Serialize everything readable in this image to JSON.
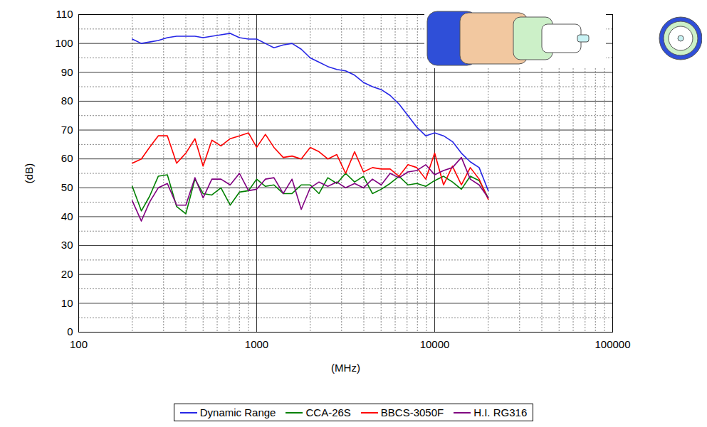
{
  "chart_data": {
    "type": "line",
    "log": "x",
    "grid": true,
    "legend": "bottom",
    "x_label": "(MHz)",
    "y_label": "(dB)",
    "xlim": [
      100,
      100000
    ],
    "xticks": [
      100,
      1000,
      10000,
      100000
    ],
    "ylim": [
      0,
      110
    ],
    "yticks": [
      0,
      10,
      20,
      30,
      40,
      50,
      60,
      70,
      80,
      90,
      100,
      110
    ],
    "x": [
      200,
      225,
      250,
      280,
      315,
      355,
      400,
      450,
      500,
      560,
      630,
      710,
      800,
      900,
      1000,
      1120,
      1250,
      1410,
      1580,
      1780,
      2000,
      2240,
      2510,
      2820,
      3160,
      3550,
      3980,
      4470,
      5010,
      5620,
      6310,
      7080,
      7940,
      8910,
      10000,
      11220,
      12590,
      14130,
      15850,
      17780,
      20000
    ],
    "series": [
      {
        "name": "Dynamic Range",
        "color": "#2626e6",
        "values": [
          101.5,
          100,
          100.5,
          101,
          102,
          102.5,
          102.5,
          102.5,
          102,
          102.5,
          103,
          103.5,
          102,
          101.5,
          101.5,
          100,
          98.5,
          99.5,
          100,
          98,
          95,
          93.5,
          92,
          91,
          90.5,
          89,
          86.5,
          85,
          84,
          82,
          79,
          75,
          71,
          68,
          69,
          68,
          66,
          62,
          59,
          57,
          49
        ]
      },
      {
        "name": "CCA-26S",
        "color": "#008000",
        "values": [
          50.5,
          42,
          47,
          54,
          54.5,
          43.5,
          41,
          53,
          48,
          47.5,
          50,
          44,
          48.5,
          49,
          53,
          50.5,
          51,
          48,
          48,
          51,
          51,
          48,
          53.5,
          51.5,
          55,
          52,
          54,
          48,
          49.5,
          51.5,
          54,
          51,
          51.5,
          50.5,
          52.5,
          54,
          52,
          49.5,
          54,
          52.5,
          46.5
        ]
      },
      {
        "name": "BBCS-3050F",
        "color": "#ff0000",
        "values": [
          58.5,
          60,
          64,
          68,
          68,
          58.5,
          62,
          67,
          57.5,
          66.5,
          64.5,
          67,
          68,
          69,
          64,
          68.5,
          64,
          60.5,
          61,
          60,
          64,
          62.5,
          60,
          61.5,
          55,
          62.5,
          55.5,
          57,
          56.5,
          56.5,
          54,
          58,
          57,
          53,
          62,
          51,
          57.5,
          51,
          57,
          53,
          46
        ]
      },
      {
        "name": "H.I. RG316",
        "color": "#800080",
        "values": [
          45.5,
          38.5,
          45,
          50,
          51.5,
          44,
          44,
          53.5,
          46.5,
          53,
          53,
          51,
          55,
          49,
          49.5,
          53,
          53.5,
          48,
          53,
          42.5,
          50,
          52,
          50.5,
          52,
          50,
          51.5,
          50,
          53,
          51,
          55,
          53.5,
          55.5,
          56,
          58,
          54.5,
          56,
          57,
          60.5,
          53,
          51,
          46.5
        ]
      }
    ]
  }
}
